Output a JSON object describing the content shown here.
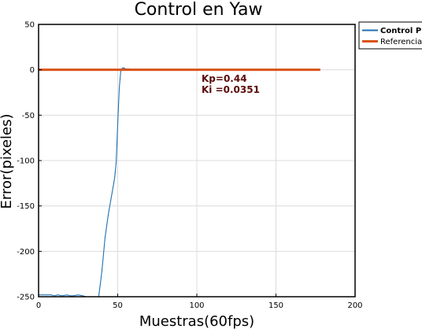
{
  "chart_data": {
    "type": "line",
    "title": "Control en Yaw",
    "xlabel": "Muestras(60fps)",
    "ylabel": "Error(pixeles)",
    "xlim": [
      0,
      200
    ],
    "ylim": [
      -250,
      50
    ],
    "xticks": [
      "0",
      "50",
      "100",
      "150",
      "200"
    ],
    "yticks": [
      "50",
      "0",
      "-50",
      "-100",
      "-150",
      "-200",
      "-250"
    ],
    "grid": true,
    "legend_position": "top-right, outside",
    "series": [
      {
        "name": "Control PI",
        "color": "#1f6fb0",
        "x": [
          0,
          5,
          8,
          10,
          12,
          15,
          18,
          20,
          22,
          25,
          28,
          30,
          33,
          36,
          38,
          40,
          42,
          44,
          46,
          48,
          49,
          50,
          51,
          52,
          53,
          54,
          55,
          57,
          60,
          70,
          80,
          100,
          120,
          150,
          178
        ],
        "y": [
          -248,
          -248,
          -248,
          -249,
          -248,
          -249,
          -248,
          -249,
          -249,
          -248,
          -249,
          -250,
          -250,
          -250,
          -250,
          -222,
          -185,
          -160,
          -140,
          -120,
          -103,
          -60,
          -20,
          0,
          2,
          2,
          1,
          1,
          0,
          0,
          0,
          0,
          0,
          0,
          0
        ]
      },
      {
        "name": "Referencia",
        "color": "#d95319",
        "x": [
          0,
          178
        ],
        "y": [
          0,
          0
        ]
      }
    ],
    "annotations": [
      "Kp=0.44",
      "Ki =0.0351"
    ]
  }
}
